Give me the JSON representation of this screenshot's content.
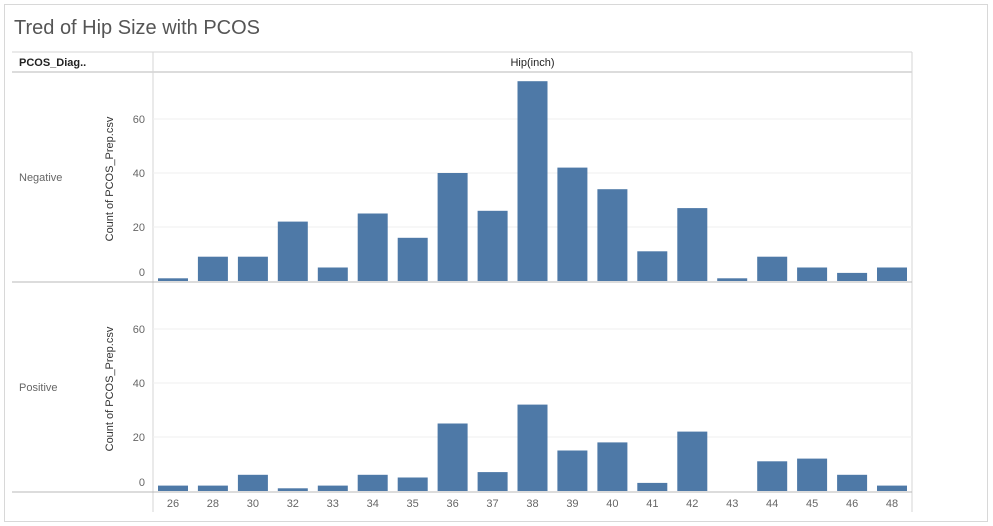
{
  "title": "Tred of Hip Size with PCOS",
  "colors": {
    "bar": "#4e79a7",
    "grid": "#efefef",
    "axis": "#b8b8b8",
    "text": "#555555"
  },
  "chart_data": {
    "type": "bar",
    "title": "Tred of Hip Size with PCOS",
    "row_header": "PCOS_Diag..",
    "column_header": "Hip(inch)",
    "ylabel": "Count of PCOS_Prep.csv",
    "ylim": [
      0,
      75
    ],
    "yticks": [
      0,
      20,
      40,
      60
    ],
    "categories": [
      "26",
      "28",
      "30",
      "32",
      "33",
      "34",
      "35",
      "36",
      "37",
      "38",
      "39",
      "40",
      "41",
      "42",
      "43",
      "44",
      "45",
      "46",
      "48"
    ],
    "panels": [
      {
        "name": "Negative",
        "values": [
          1,
          9,
          9,
          22,
          5,
          25,
          16,
          40,
          26,
          74,
          42,
          34,
          11,
          27,
          1,
          9,
          5,
          3,
          5
        ]
      },
      {
        "name": "Positive",
        "values": [
          2,
          2,
          6,
          1,
          2,
          6,
          5,
          25,
          7,
          32,
          15,
          18,
          3,
          22,
          0,
          11,
          12,
          6,
          2
        ]
      }
    ]
  }
}
